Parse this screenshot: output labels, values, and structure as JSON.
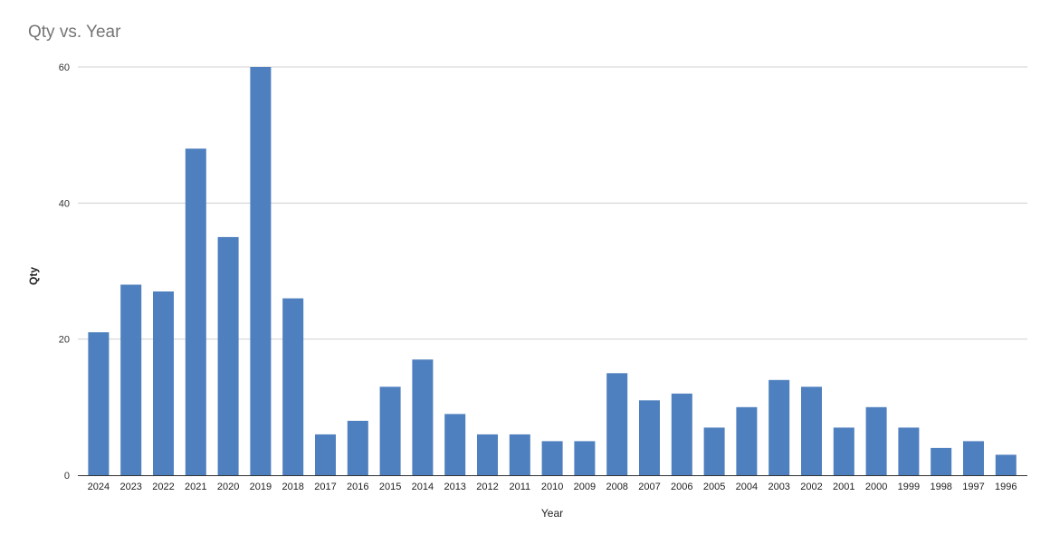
{
  "chart_data": {
    "type": "bar",
    "title": "Qty vs. Year",
    "xlabel": "Year",
    "ylabel": "Qty",
    "ylim": [
      0,
      60
    ],
    "yticks": [
      0,
      20,
      40,
      60
    ],
    "grid": true,
    "bar_color": "#4e7fbe",
    "categories": [
      "2024",
      "2023",
      "2022",
      "2021",
      "2020",
      "2019",
      "2018",
      "2017",
      "2016",
      "2015",
      "2014",
      "2013",
      "2012",
      "2011",
      "2010",
      "2009",
      "2008",
      "2007",
      "2006",
      "2005",
      "2004",
      "2003",
      "2002",
      "2001",
      "2000",
      "1999",
      "1998",
      "1997",
      "1996"
    ],
    "values": [
      21,
      28,
      27,
      48,
      35,
      60,
      26,
      6,
      8,
      13,
      17,
      9,
      6,
      6,
      5,
      5,
      15,
      11,
      12,
      7,
      10,
      14,
      13,
      7,
      10,
      7,
      4,
      5,
      3
    ]
  }
}
